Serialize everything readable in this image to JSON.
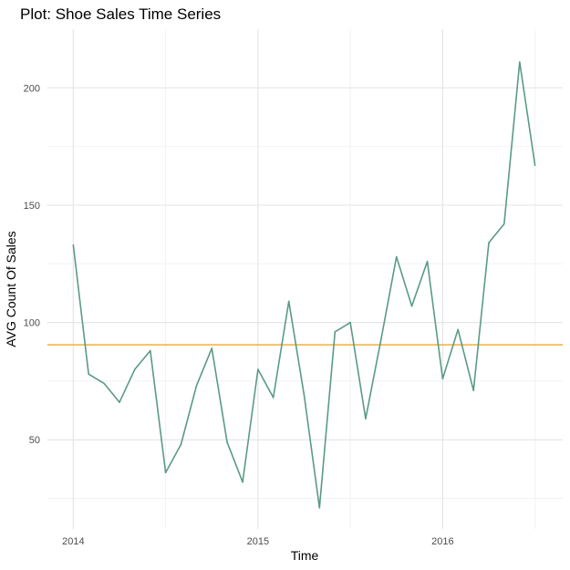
{
  "chart_data": {
    "type": "line",
    "title": "Plot: Shoe Sales Time Series",
    "xlabel": "Time",
    "ylabel": "AVG Count Of Sales",
    "x_ticks": [
      2014,
      2015,
      2016
    ],
    "y_ticks": [
      50,
      100,
      150,
      200
    ],
    "xlim": [
      2013.86,
      2016.65
    ],
    "ylim": [
      12,
      225
    ],
    "grid": true,
    "legend": "none",
    "series": [
      {
        "color": "#5a9a88",
        "x": [
          2014.0,
          2014.083,
          2014.167,
          2014.25,
          2014.333,
          2014.417,
          2014.5,
          2014.583,
          2014.667,
          2014.75,
          2014.833,
          2014.917,
          2015.0,
          2015.083,
          2015.167,
          2015.25,
          2015.333,
          2015.417,
          2015.5,
          2015.583,
          2015.667,
          2015.75,
          2015.833,
          2015.917,
          2016.0,
          2016.083,
          2016.167,
          2016.25,
          2016.333,
          2016.417,
          2016.5
        ],
        "values": [
          133,
          78,
          74,
          66,
          80,
          88,
          36,
          48,
          73,
          89,
          49,
          32,
          80,
          68,
          109,
          69,
          21,
          96,
          100,
          59,
          93,
          128,
          107,
          126,
          76,
          97,
          71,
          134,
          142,
          211,
          167
        ]
      }
    ],
    "reference_line": {
      "value": 90.5,
      "color": "#f5a623"
    }
  }
}
